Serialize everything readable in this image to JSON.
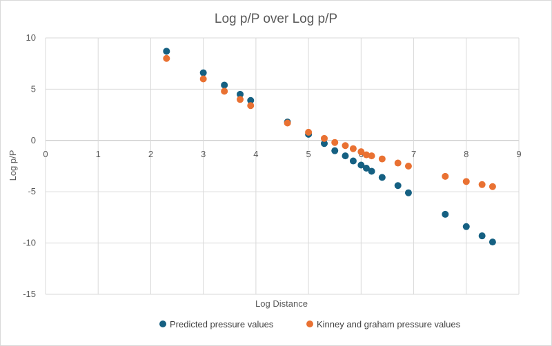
{
  "chart_data": {
    "type": "scatter",
    "title": "Log p/P over Log p/P",
    "xlabel": "Log Distance",
    "ylabel": "Log p/P",
    "xlim": [
      0,
      9
    ],
    "ylim": [
      -15,
      10
    ],
    "x_ticks": [
      "0",
      "1",
      "2",
      "3",
      "4",
      "5",
      "6",
      "7",
      "8",
      "9"
    ],
    "y_ticks": [
      "10",
      "5",
      "0",
      "-5",
      "-10",
      "-15"
    ],
    "x_tick_values": [
      0,
      1,
      2,
      3,
      4,
      5,
      6,
      7,
      8,
      9
    ],
    "y_tick_values": [
      10,
      5,
      0,
      -5,
      -10,
      -15
    ],
    "grid": true,
    "legend_position": "bottom",
    "series": [
      {
        "name": "Predicted pressure values",
        "color": "#156082",
        "x": [
          2.3,
          3.0,
          3.4,
          3.7,
          3.9,
          4.6,
          5.0,
          5.3,
          5.5,
          5.7,
          5.85,
          6.0,
          6.1,
          6.2,
          6.4,
          6.7,
          6.9,
          7.6,
          8.0,
          8.3,
          8.5
        ],
        "y": [
          8.7,
          6.6,
          5.4,
          4.5,
          3.9,
          1.8,
          0.6,
          -0.3,
          -1.0,
          -1.5,
          -2.0,
          -2.4,
          -2.7,
          -3.0,
          -3.6,
          -4.4,
          -5.1,
          -7.2,
          -8.4,
          -9.3,
          -9.9
        ]
      },
      {
        "name": "Kinney and graham pressure values",
        "color": "#E97132",
        "x": [
          2.3,
          3.0,
          3.4,
          3.7,
          3.9,
          4.6,
          5.0,
          5.3,
          5.5,
          5.7,
          5.85,
          6.0,
          6.1,
          6.2,
          6.4,
          6.7,
          6.9,
          7.6,
          8.0,
          8.3,
          8.5
        ],
        "y": [
          8.0,
          6.0,
          4.8,
          4.0,
          3.4,
          1.7,
          0.8,
          0.2,
          -0.2,
          -0.5,
          -0.8,
          -1.1,
          -1.4,
          -1.5,
          -1.8,
          -2.2,
          -2.5,
          -3.5,
          -4.0,
          -4.3,
          -4.5
        ]
      }
    ]
  }
}
